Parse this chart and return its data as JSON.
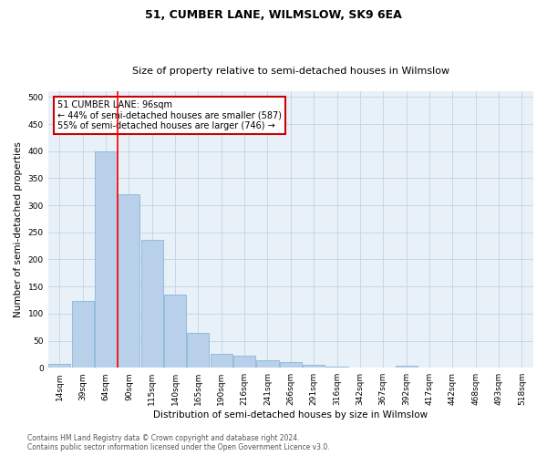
{
  "title": "51, CUMBER LANE, WILMSLOW, SK9 6EA",
  "subtitle": "Size of property relative to semi-detached houses in Wilmslow",
  "xlabel": "Distribution of semi-detached houses by size in Wilmslow",
  "ylabel": "Number of semi-detached properties",
  "categories": [
    "14sqm",
    "39sqm",
    "64sqm",
    "90sqm",
    "115sqm",
    "140sqm",
    "165sqm",
    "190sqm",
    "216sqm",
    "241sqm",
    "266sqm",
    "291sqm",
    "316sqm",
    "342sqm",
    "367sqm",
    "392sqm",
    "417sqm",
    "442sqm",
    "468sqm",
    "493sqm",
    "518sqm"
  ],
  "values": [
    7,
    124,
    400,
    320,
    237,
    135,
    65,
    26,
    22,
    14,
    11,
    6,
    2,
    0,
    0,
    3,
    0,
    0,
    0,
    0,
    1
  ],
  "bar_color": "#b8d0ea",
  "bar_edge_color": "#7aafd4",
  "red_line_x": 3,
  "annotation_title": "51 CUMBER LANE: 96sqm",
  "annotation_line1": "← 44% of semi-detached houses are smaller (587)",
  "annotation_line2": "55% of semi-detached houses are larger (746) →",
  "annotation_box_color": "#ffffff",
  "annotation_box_edge": "#cc0000",
  "footer_line1": "Contains HM Land Registry data © Crown copyright and database right 2024.",
  "footer_line2": "Contains public sector information licensed under the Open Government Licence v3.0.",
  "ylim": [
    0,
    510
  ],
  "bg_color": "#ffffff",
  "grid_color": "#c8d8e8",
  "title_fontsize": 9,
  "subtitle_fontsize": 8,
  "tick_fontsize": 6.5,
  "ylabel_fontsize": 7.5,
  "xlabel_fontsize": 7.5,
  "annotation_fontsize": 7,
  "footer_fontsize": 5.5
}
